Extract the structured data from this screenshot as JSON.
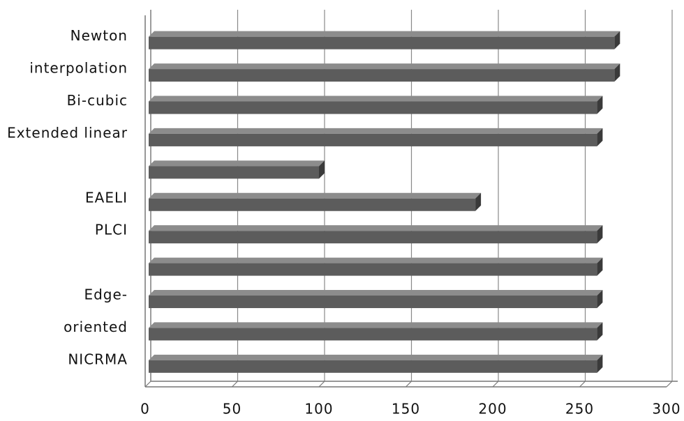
{
  "chart_data": {
    "type": "bar",
    "orientation": "horizontal",
    "categories": [
      "Newton",
      "interpolation",
      "Bi-cubic",
      "Extended linear",
      null,
      "EAELI",
      "PLCI",
      null,
      "Edge-",
      "oriented",
      "NICRMA"
    ],
    "values": [
      270,
      270,
      260,
      260,
      100,
      190,
      260,
      260,
      260,
      260,
      260
    ],
    "color": "#5c5c5c",
    "xlim": [
      0,
      300
    ],
    "xticks": [
      0,
      50,
      100,
      150,
      200,
      250,
      300
    ],
    "grid": true
  }
}
